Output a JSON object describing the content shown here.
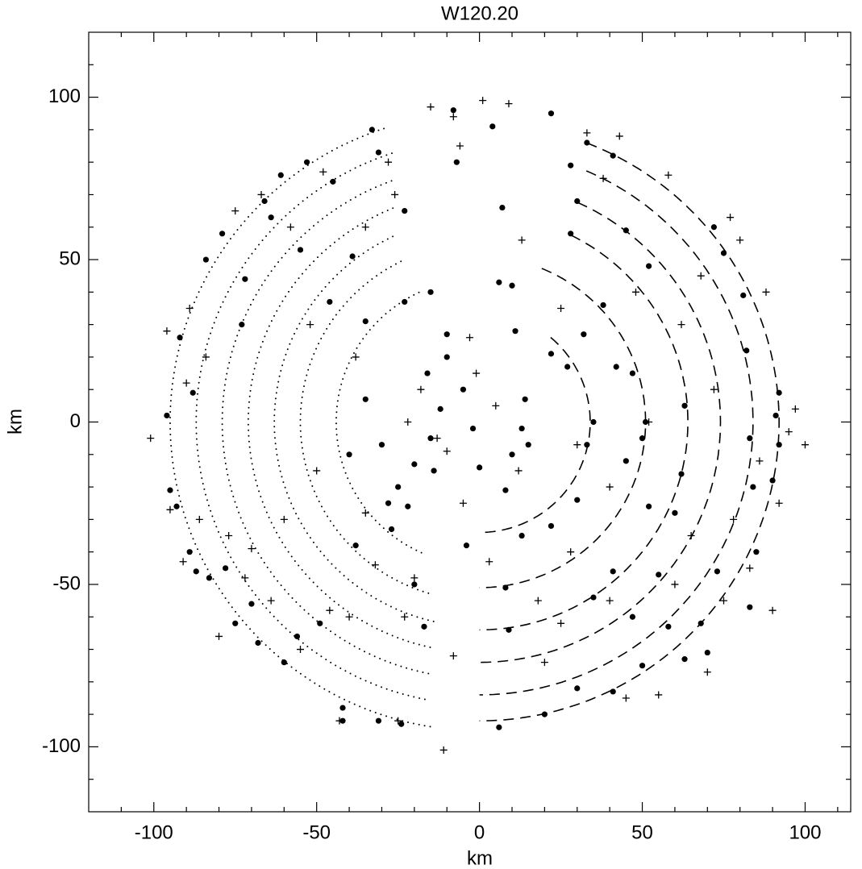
{
  "chart_data": {
    "type": "scatter",
    "title": "W120.20",
    "xlabel": "km",
    "ylabel": "km",
    "xlim": [
      -120,
      114
    ],
    "ylim": [
      -120,
      120
    ],
    "xticks": [
      -100,
      -50,
      0,
      50,
      100
    ],
    "yticks": [
      -100,
      -50,
      0,
      50,
      100
    ],
    "xminorticks": [
      -110,
      -90,
      -80,
      -70,
      -60,
      -40,
      -30,
      -20,
      -10,
      10,
      20,
      30,
      40,
      60,
      70,
      80,
      90,
      110
    ],
    "yminorticks": [
      -110,
      -90,
      -80,
      -70,
      -60,
      -40,
      -30,
      -20,
      -10,
      10,
      20,
      30,
      40,
      60,
      70,
      80,
      90,
      110
    ],
    "series": [
      {
        "marker": "dot",
        "color": "#000000",
        "x": [
          -96,
          -95,
          -93,
          -92,
          -89,
          -88,
          -87,
          -84,
          -83,
          -79,
          -78,
          -75,
          -73,
          -72,
          -70,
          -68,
          -66,
          -64,
          -60,
          -61,
          -56,
          -55,
          -53,
          -49,
          -45,
          -42,
          -42,
          -31,
          -33,
          -31,
          -23,
          -24,
          -46,
          -39,
          -35,
          -30,
          -28,
          -38,
          -20,
          -17,
          -23,
          -15,
          -25,
          -35,
          -40,
          -14,
          -15,
          -16,
          -10,
          -10,
          -8,
          -7,
          -4,
          4,
          7,
          6,
          10,
          11,
          14,
          15,
          13,
          10,
          0,
          8,
          22,
          22,
          27,
          30,
          33,
          35,
          32,
          38,
          42,
          41,
          45,
          47,
          50,
          51,
          52,
          55,
          60,
          62,
          63,
          68,
          70,
          72,
          75,
          81,
          82,
          83,
          84,
          85,
          90,
          92,
          92,
          91,
          52,
          45,
          41,
          33,
          28,
          30,
          28,
          50,
          41,
          30,
          20,
          6,
          9,
          8,
          13,
          22,
          35,
          47,
          58,
          63,
          73,
          83,
          -2,
          -5,
          -12,
          -20,
          -22,
          -27
        ],
        "values": [
          2,
          -21,
          -26,
          26,
          -40,
          9,
          -46,
          50,
          -48,
          58,
          -45,
          -62,
          30,
          44,
          -56,
          -68,
          68,
          63,
          -74,
          76,
          -66,
          53,
          80,
          -62,
          74,
          -88,
          -92,
          -92,
          90,
          83,
          65,
          -93,
          37,
          51,
          31,
          -7,
          -25,
          -38,
          -50,
          -63,
          37,
          40,
          -20,
          7,
          -10,
          -15,
          -5,
          15,
          20,
          27,
          96,
          80,
          -38,
          91,
          66,
          43,
          42,
          28,
          7,
          -7,
          -2,
          -10,
          -14,
          -21,
          95,
          21,
          17,
          -24,
          -7,
          0,
          27,
          36,
          17,
          -46,
          -12,
          15,
          -5,
          0,
          -26,
          -47,
          -28,
          -16,
          5,
          -62,
          -71,
          60,
          52,
          39,
          22,
          -5,
          -20,
          -40,
          -18,
          9,
          -7,
          2,
          48,
          59,
          82,
          86,
          79,
          68,
          58,
          -75,
          -83,
          -82,
          -90,
          -94,
          -64,
          -51,
          -35,
          -32,
          -54,
          -60,
          -63,
          -73,
          -46,
          -57,
          -2,
          10,
          4,
          -13,
          -26,
          -33
        ]
      },
      {
        "marker": "plus",
        "color": "#000000",
        "x": [
          -101,
          -96,
          -95,
          -91,
          -90,
          -89,
          -86,
          -84,
          -80,
          -77,
          -75,
          -72,
          -70,
          -67,
          -64,
          -60,
          -58,
          -55,
          -52,
          -50,
          -48,
          -46,
          -43,
          -40,
          -38,
          -35,
          -32,
          -28,
          -26,
          -25,
          -23,
          -20,
          -18,
          -15,
          -13,
          -10,
          -8,
          -8,
          -6,
          -1,
          1,
          -11,
          3,
          9,
          13,
          18,
          20,
          25,
          28,
          30,
          33,
          38,
          40,
          43,
          45,
          48,
          52,
          55,
          58,
          60,
          62,
          65,
          68,
          70,
          72,
          75,
          77,
          78,
          80,
          83,
          86,
          88,
          90,
          92,
          95,
          97,
          100,
          -5,
          5,
          -3,
          12,
          -22,
          -35,
          25,
          40
        ],
        "values": [
          -5,
          28,
          -27,
          -43,
          12,
          35,
          -30,
          20,
          -66,
          -35,
          65,
          -48,
          -39,
          70,
          -55,
          -30,
          60,
          -70,
          30,
          -15,
          77,
          -58,
          -92,
          -60,
          20,
          60,
          -44,
          80,
          70,
          -92,
          -60,
          -48,
          10,
          97,
          -5,
          -9,
          -72,
          94,
          85,
          15,
          99,
          -101,
          -43,
          98,
          56,
          -55,
          -74,
          -62,
          -40,
          -7,
          89,
          75,
          -55,
          88,
          -85,
          40,
          0,
          -84,
          76,
          -50,
          30,
          -35,
          45,
          -77,
          10,
          -55,
          63,
          -30,
          56,
          -45,
          -12,
          40,
          -58,
          -25,
          -3,
          4,
          -7,
          -25,
          5,
          26,
          -15,
          0,
          -28,
          35,
          -20
        ]
      }
    ],
    "curves": [
      {
        "style": "dotted",
        "r": 95,
        "a0": 108,
        "a1": 261
      },
      {
        "style": "dotted",
        "r": 87,
        "a0": 108,
        "a1": 259
      },
      {
        "style": "dotted",
        "r": 79,
        "a0": 110,
        "a1": 259
      },
      {
        "style": "dotted",
        "r": 71,
        "a0": 112,
        "a1": 259
      },
      {
        "style": "dotted",
        "r": 63,
        "a0": 115,
        "a1": 258
      },
      {
        "style": "dotted",
        "r": 55,
        "a0": 116,
        "a1": 254
      },
      {
        "style": "dotted",
        "r": 44,
        "a0": 115,
        "a1": 248
      },
      {
        "style": "dashed",
        "r": 92,
        "a0": 69,
        "a1": -90
      },
      {
        "style": "dashed",
        "r": 84,
        "a0": 67,
        "a1": -90
      },
      {
        "style": "dashed",
        "r": 74,
        "a0": 66,
        "a1": -90
      },
      {
        "style": "dashed",
        "r": 64,
        "a0": 64,
        "a1": -90
      },
      {
        "style": "dashed",
        "r": 51,
        "a0": 68,
        "a1": -90
      },
      {
        "style": "dashed",
        "r": 34,
        "a0": 50,
        "a1": -90
      }
    ]
  }
}
